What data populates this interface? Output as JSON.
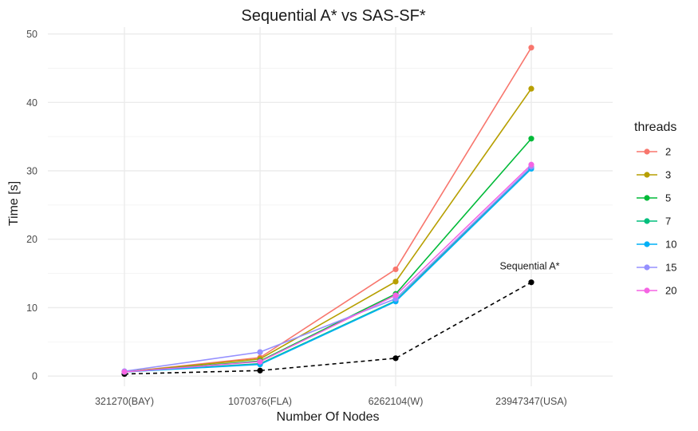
{
  "chart_data": {
    "type": "line",
    "title": "Sequential A* vs SAS-SF*",
    "xlabel": "Number Of Nodes",
    "ylabel": "Time [s]",
    "categories": [
      "321270(BAY)",
      "1070376(FLA)",
      "6262104(W)",
      "23947347(USA)"
    ],
    "ylim": [
      -1.5,
      51
    ],
    "yticks": [
      0,
      10,
      20,
      30,
      40,
      50
    ],
    "grid": true,
    "legend": {
      "title": "threads",
      "position": "right"
    },
    "series": [
      {
        "name": "2",
        "color": "#F8766D",
        "values": [
          0.6,
          2.7,
          15.6,
          48.0
        ]
      },
      {
        "name": "3",
        "color": "#B79F00",
        "values": [
          0.6,
          2.5,
          13.8,
          42.0
        ]
      },
      {
        "name": "5",
        "color": "#00BA38",
        "values": [
          0.6,
          2.2,
          12.0,
          34.7
        ]
      },
      {
        "name": "7",
        "color": "#00BF7D",
        "values": [
          0.6,
          1.8,
          11.0,
          30.5
        ]
      },
      {
        "name": "10",
        "color": "#00B0F6",
        "values": [
          0.6,
          1.7,
          10.9,
          30.3
        ]
      },
      {
        "name": "15",
        "color": "#9590FF",
        "values": [
          0.7,
          3.5,
          11.3,
          30.6
        ]
      },
      {
        "name": "20",
        "color": "#F564E3",
        "values": [
          0.6,
          2.1,
          11.8,
          30.9
        ]
      }
    ],
    "baseline": {
      "name": "Sequential A*",
      "color": "#000000",
      "style": "dashed",
      "values": [
        0.3,
        0.8,
        2.6,
        13.7
      ],
      "annotation": "Sequential A*"
    }
  }
}
